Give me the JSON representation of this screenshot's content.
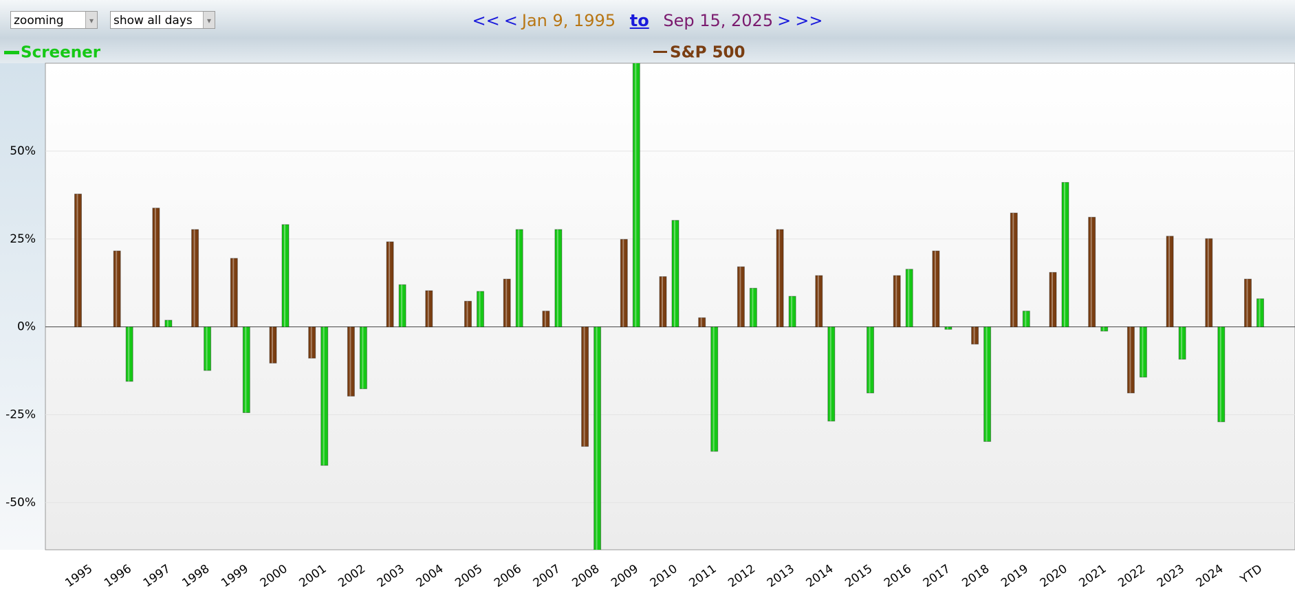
{
  "controls": {
    "zoom_select": "zooming",
    "days_select": "show all days",
    "nav": {
      "first": "<<",
      "prev": "<",
      "start": "Jan 9, 1995",
      "to": "to",
      "end": "Sep 15, 2025",
      "next": ">",
      "last": ">>"
    }
  },
  "chart_data": {
    "type": "bar",
    "categories": [
      "1995",
      "1996",
      "1997",
      "1998",
      "1999",
      "2000",
      "2001",
      "2002",
      "2003",
      "2004",
      "2005",
      "2006",
      "2007",
      "2008",
      "2009",
      "2010",
      "2011",
      "2012",
      "2013",
      "2014",
      "2015",
      "2016",
      "2017",
      "2018",
      "2019",
      "2020",
      "2021",
      "2022",
      "2023",
      "2024",
      "YTD"
    ],
    "series": [
      {
        "name": "S&P 500",
        "color": "#7a3e12",
        "values": [
          37.8,
          21.6,
          33.8,
          27.7,
          19.5,
          -10.3,
          -8.9,
          -19.7,
          24.2,
          10.3,
          7.3,
          13.6,
          4.5,
          -34.0,
          24.9,
          14.3,
          2.6,
          17.1,
          27.7,
          14.6,
          null,
          14.6,
          21.6,
          -4.9,
          32.4,
          15.5,
          31.2,
          -18.8,
          25.8,
          25.1,
          13.6
        ]
      },
      {
        "name": "Screener",
        "color": "#16c816",
        "values": [
          null,
          -15.5,
          1.9,
          -12.4,
          -24.4,
          29.1,
          -39.4,
          -17.6,
          12.0,
          null,
          10.1,
          27.7,
          27.7,
          -64,
          76,
          30.3,
          -35.4,
          11.0,
          8.7,
          -26.8,
          -18.8,
          16.4,
          -0.7,
          -32.6,
          4.5,
          41.1,
          -1.2,
          -14.3,
          -9.2,
          -27.0,
          8.0
        ]
      }
    ],
    "ylim": [
      -63.4,
      75
    ],
    "yticks": [
      {
        "value": -50,
        "label": "-50%"
      },
      {
        "value": -25,
        "label": "-25%"
      },
      {
        "value": 0,
        "label": "0%"
      },
      {
        "value": 25,
        "label": "25%"
      },
      {
        "value": 50,
        "label": "50%"
      }
    ],
    "grid": true
  }
}
